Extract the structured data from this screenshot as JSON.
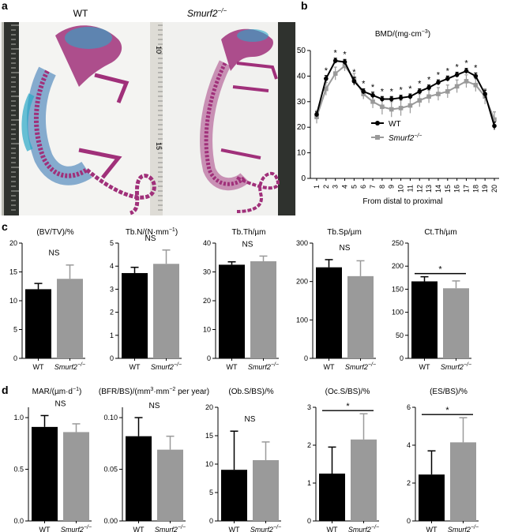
{
  "panel_labels": {
    "a": "a",
    "b": "b",
    "c": "c",
    "d": "d"
  },
  "photos": {
    "left_label": "WT",
    "right_label_base": "Smurf2",
    "right_label_sup": "−/−",
    "ruler_numbers": [
      "10",
      "15"
    ]
  },
  "colors": {
    "wt": "#000000",
    "ko": "#9a9a9a",
    "bone": "#a0307a",
    "cartilage": "#2aa8c8",
    "ruler": "#3a3c38"
  },
  "chart_data": [
    {
      "id": "bmd",
      "type": "line",
      "title": "BMD/(mg·cm",
      "title_sup": "−3",
      "title_end": ")",
      "xlabel": "From distal to proximal",
      "x": [
        1,
        2,
        3,
        4,
        5,
        6,
        7,
        8,
        9,
        10,
        11,
        12,
        13,
        14,
        15,
        16,
        17,
        18,
        19,
        20
      ],
      "ylim": [
        0,
        50
      ],
      "yticks": [
        0,
        10,
        20,
        30,
        40,
        50
      ],
      "series": [
        {
          "name": "WT",
          "values": [
            25,
            39,
            46,
            45.5,
            38,
            34,
            32.5,
            31,
            31,
            31.5,
            32,
            34,
            35.5,
            37.5,
            39,
            40.5,
            42,
            40,
            33,
            20.5
          ],
          "errors": [
            1,
            1.2,
            1,
            1,
            1.5,
            1,
            1.2,
            1,
            1,
            1,
            1,
            1,
            1,
            1,
            1,
            1,
            1,
            1.2,
            1.5,
            1.5
          ]
        },
        {
          "name": "Smurf2",
          "name_sup": "−/−",
          "values": [
            24,
            35,
            41,
            44,
            39,
            33,
            30,
            28,
            27,
            27.5,
            28.5,
            30.5,
            32,
            33,
            34,
            36,
            38,
            36.5,
            32,
            23
          ],
          "errors": [
            2.5,
            2.5,
            2.5,
            2,
            2,
            2,
            2.5,
            3,
            3,
            3,
            3,
            2.5,
            2.5,
            2.5,
            2.5,
            2.5,
            2.5,
            2.5,
            3,
            3
          ]
        }
      ],
      "significance": [
        "*",
        "*",
        "*",
        "*",
        "*",
        "*",
        "*",
        "*",
        "*",
        "*",
        "*",
        "*",
        "*",
        "*",
        "*",
        "*",
        "*"
      ],
      "significance_x": [
        2,
        3,
        4,
        5,
        6,
        7,
        8,
        9,
        10,
        11,
        12,
        13,
        14,
        15,
        16,
        17,
        18
      ]
    },
    {
      "id": "bvtv",
      "type": "bar",
      "title": "(BV/TV)/%",
      "title_sup": "",
      "title_end": "",
      "categories": [
        "WT",
        "Smurf2"
      ],
      "cat_sup": [
        "",
        "−/−"
      ],
      "values": [
        12,
        13.8
      ],
      "errors": [
        1,
        2.4
      ],
      "ylim": [
        0,
        20
      ],
      "yticks": [
        "0",
        "5",
        "10",
        "15",
        "20"
      ],
      "significance": "NS"
    },
    {
      "id": "tbn",
      "type": "bar",
      "title": "Tb.N/(N·mm",
      "title_sup": "−1",
      "title_end": ")",
      "categories": [
        "WT",
        "Smurf2"
      ],
      "cat_sup": [
        "",
        "−/−"
      ],
      "values": [
        3.7,
        4.1
      ],
      "errors": [
        0.25,
        0.6
      ],
      "ylim": [
        0,
        5
      ],
      "yticks": [
        "0",
        "1",
        "2",
        "3",
        "4",
        "5"
      ],
      "significance": "NS"
    },
    {
      "id": "tbth",
      "type": "bar",
      "title": "Tb.Th/µm",
      "title_sup": "",
      "title_end": "",
      "categories": [
        "WT",
        "Smurf2"
      ],
      "cat_sup": [
        "",
        "−/−"
      ],
      "values": [
        32.5,
        33.7
      ],
      "errors": [
        1,
        1.8
      ],
      "ylim": [
        0,
        40
      ],
      "yticks": [
        "0",
        "10",
        "20",
        "30",
        "40"
      ],
      "significance": "NS"
    },
    {
      "id": "tbsp",
      "type": "bar",
      "title": "Tb.Sp/µm",
      "title_sup": "",
      "title_end": "",
      "categories": [
        "WT",
        "Smurf2"
      ],
      "cat_sup": [
        "",
        "−/−"
      ],
      "values": [
        237,
        214
      ],
      "errors": [
        20,
        40
      ],
      "ylim": [
        0,
        300
      ],
      "yticks": [
        "0",
        "100",
        "200",
        "300"
      ],
      "significance": "NS"
    },
    {
      "id": "ctth",
      "type": "bar",
      "title": "Ct.Th/µm",
      "title_sup": "",
      "title_end": "",
      "categories": [
        "WT",
        "Smurf2"
      ],
      "cat_sup": [
        "",
        "−/−"
      ],
      "values": [
        167,
        152
      ],
      "errors": [
        10,
        16
      ],
      "ylim": [
        0,
        250
      ],
      "yticks": [
        "0",
        "50",
        "100",
        "150",
        "200",
        "250"
      ],
      "significance": "*"
    },
    {
      "id": "mar",
      "type": "bar",
      "title": "MAR/(µm·d",
      "title_sup": "−1",
      "title_end": ")",
      "categories": [
        "WT",
        "Smurf2"
      ],
      "cat_sup": [
        "",
        "−/−"
      ],
      "values": [
        0.91,
        0.86
      ],
      "errors": [
        0.11,
        0.08
      ],
      "ylim": [
        0,
        1.1
      ],
      "yticks": [
        "0.0",
        "0.5",
        "1.0"
      ],
      "tickvals": [
        0,
        0.5,
        1.0
      ],
      "significance": "NS"
    },
    {
      "id": "bfr",
      "type": "bar",
      "title": "(BFR/BS)/(mm",
      "title_sup": "3",
      "title_end": "·mm",
      "title_sup2": "−2",
      "title_end2": " per year)",
      "categories": [
        "WT",
        "Smurf2"
      ],
      "cat_sup": [
        "",
        "−/−"
      ],
      "values": [
        0.082,
        0.069
      ],
      "errors": [
        0.018,
        0.013
      ],
      "ylim": [
        0,
        0.11
      ],
      "yticks": [
        "0.00",
        "0.05",
        "0.10"
      ],
      "tickvals": [
        0,
        0.05,
        0.1
      ],
      "significance": "NS"
    },
    {
      "id": "obs",
      "type": "bar",
      "title": "(Ob.S/BS)/%",
      "title_sup": "",
      "title_end": "",
      "categories": [
        "WT",
        "Smurf2"
      ],
      "cat_sup": [
        "",
        "−/−"
      ],
      "values": [
        9,
        10.7
      ],
      "errors": [
        6.8,
        3.2
      ],
      "ylim": [
        0,
        20
      ],
      "yticks": [
        "0",
        "5",
        "10",
        "15",
        "20"
      ],
      "significance": "NS"
    },
    {
      "id": "ocs",
      "type": "bar",
      "title": "(Oc.S/BS)/%",
      "title_sup": "",
      "title_end": "",
      "categories": [
        "WT",
        "Smurf2"
      ],
      "cat_sup": [
        "",
        "−/−"
      ],
      "values": [
        1.25,
        2.15
      ],
      "errors": [
        0.7,
        0.68
      ],
      "ylim": [
        0,
        3
      ],
      "yticks": [
        "0",
        "1",
        "2",
        "3"
      ],
      "significance": "*"
    },
    {
      "id": "esbs",
      "type": "bar",
      "title": "(ES/BS)/%",
      "title_sup": "",
      "title_end": "",
      "categories": [
        "WT",
        "Smurf2"
      ],
      "cat_sup": [
        "",
        "−/−"
      ],
      "values": [
        2.45,
        4.15
      ],
      "errors": [
        1.25,
        1.3
      ],
      "ylim": [
        0,
        6
      ],
      "yticks": [
        "0",
        "2",
        "4",
        "6"
      ],
      "significance": "*"
    }
  ]
}
